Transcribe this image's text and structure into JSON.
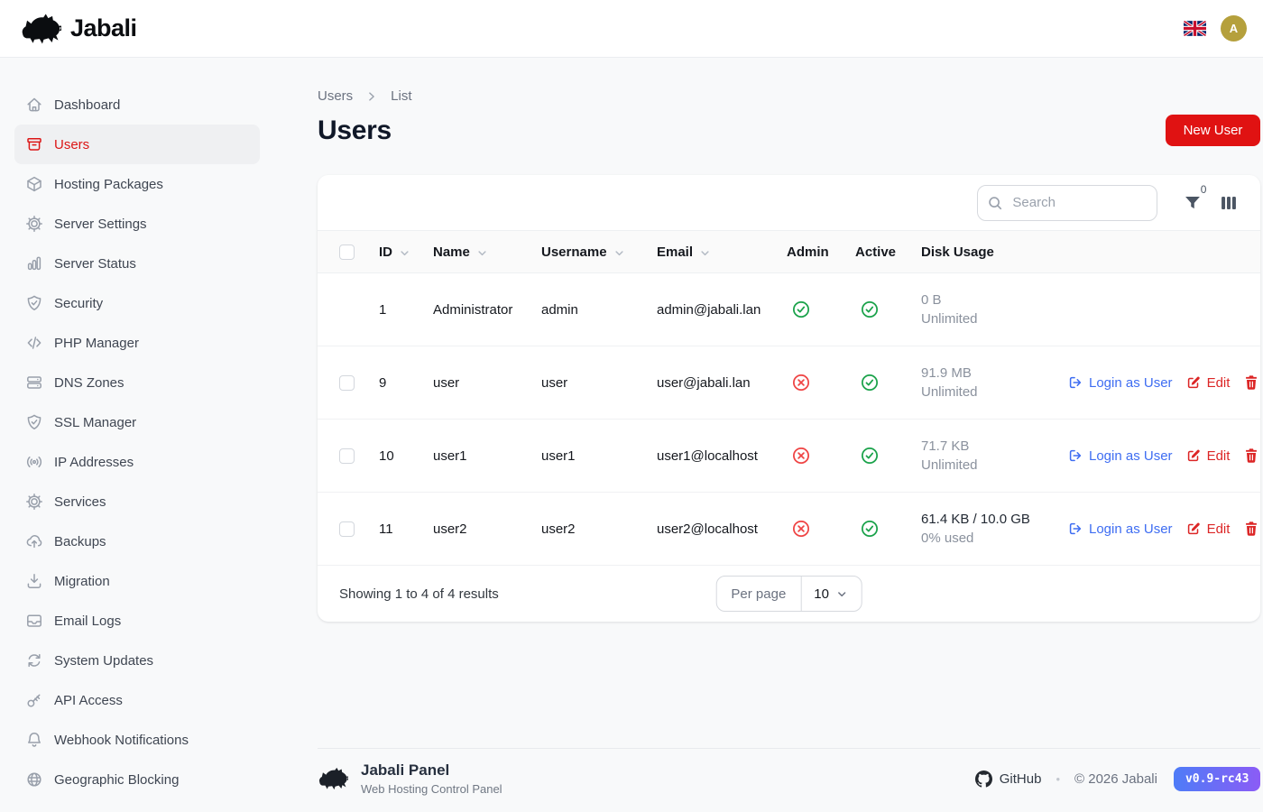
{
  "header": {
    "brand": "Jabali",
    "avatar_initial": "A",
    "language_flag": "united-kingdom"
  },
  "sidebar": {
    "items": [
      {
        "label": "Dashboard",
        "icon": "home",
        "active": false
      },
      {
        "label": "Users",
        "icon": "archive-box",
        "active": true
      },
      {
        "label": "Hosting Packages",
        "icon": "cube",
        "active": false
      },
      {
        "label": "Server Settings",
        "icon": "cog",
        "active": false
      },
      {
        "label": "Server Status",
        "icon": "bar-chart",
        "active": false
      },
      {
        "label": "Security",
        "icon": "shield-check",
        "active": false
      },
      {
        "label": "PHP Manager",
        "icon": "code",
        "active": false
      },
      {
        "label": "DNS Zones",
        "icon": "server-stack",
        "active": false
      },
      {
        "label": "SSL Manager",
        "icon": "shield-check",
        "active": false
      },
      {
        "label": "IP Addresses",
        "icon": "signal",
        "active": false
      },
      {
        "label": "Services",
        "icon": "cog",
        "active": false
      },
      {
        "label": "Backups",
        "icon": "cloud-upload",
        "active": false
      },
      {
        "label": "Migration",
        "icon": "download-tray",
        "active": false
      },
      {
        "label": "Email Logs",
        "icon": "inbox",
        "active": false
      },
      {
        "label": "System Updates",
        "icon": "refresh",
        "active": false
      },
      {
        "label": "API Access",
        "icon": "key",
        "active": false
      },
      {
        "label": "Webhook Notifications",
        "icon": "bell",
        "active": false
      },
      {
        "label": "Geographic Blocking",
        "icon": "globe",
        "active": false
      }
    ]
  },
  "breadcrumb": {
    "parent": "Users",
    "current": "List"
  },
  "page": {
    "title": "Users",
    "new_user_label": "New User"
  },
  "toolbar": {
    "search_placeholder": "Search",
    "filter_badge": "0"
  },
  "table": {
    "columns": [
      {
        "label": "ID",
        "sortable": true
      },
      {
        "label": "Name",
        "sortable": true
      },
      {
        "label": "Username",
        "sortable": true
      },
      {
        "label": "Email",
        "sortable": true
      },
      {
        "label": "Admin",
        "sortable": false
      },
      {
        "label": "Active",
        "sortable": false
      },
      {
        "label": "Disk Usage",
        "sortable": false
      }
    ],
    "rows": [
      {
        "id": "1",
        "name": "Administrator",
        "username": "admin",
        "email": "admin@jabali.lan",
        "admin": true,
        "active": true,
        "disk_primary": "0 B",
        "disk_secondary": "Unlimited",
        "disk_emphasis": false,
        "selectable": false,
        "has_actions": false
      },
      {
        "id": "9",
        "name": "user",
        "username": "user",
        "email": "user@jabali.lan",
        "admin": false,
        "active": true,
        "disk_primary": "91.9 MB",
        "disk_secondary": "Unlimited",
        "disk_emphasis": false,
        "selectable": true,
        "has_actions": true
      },
      {
        "id": "10",
        "name": "user1",
        "username": "user1",
        "email": "user1@localhost",
        "admin": false,
        "active": true,
        "disk_primary": "71.7 KB",
        "disk_secondary": "Unlimited",
        "disk_emphasis": false,
        "selectable": true,
        "has_actions": true
      },
      {
        "id": "11",
        "name": "user2",
        "username": "user2",
        "email": "user2@localhost",
        "admin": false,
        "active": true,
        "disk_primary": "61.4 KB / 10.0 GB",
        "disk_secondary": "0% used",
        "disk_emphasis": true,
        "selectable": true,
        "has_actions": true
      }
    ],
    "row_actions": {
      "login": "Login as User",
      "edit": "Edit"
    },
    "pagination": {
      "summary": "Showing 1 to 4 of 4 results",
      "per_page_label": "Per page",
      "per_page_value": "10"
    }
  },
  "footer": {
    "title": "Jabali Panel",
    "subtitle": "Web Hosting Control Panel",
    "github_label": "GitHub",
    "copyright": "© 2026 Jabali",
    "version": "v0.9-rc43"
  },
  "colors": {
    "accent_red": "#e01212",
    "link_blue": "#3e6df2",
    "success_green": "#1aa24a",
    "danger_red": "#ef4444",
    "avatar_gold": "#b5a03c",
    "badge_gradient_start": "#4e7cf7",
    "badge_gradient_end": "#8b5cf6"
  }
}
